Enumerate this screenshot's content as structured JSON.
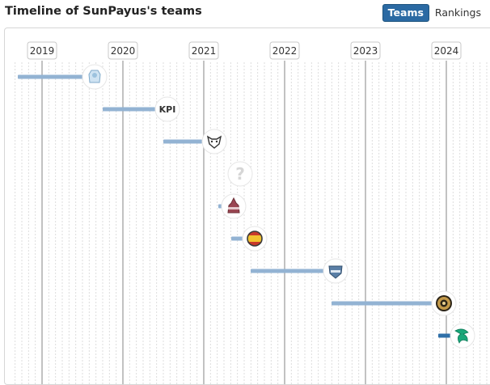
{
  "header": {
    "title": "Timeline of SunPayus's teams"
  },
  "switcher": {
    "teams_label": "Teams",
    "rankings_label": "Rankings",
    "active": "Teams"
  },
  "timeline": {
    "years": [
      "2019",
      "2020",
      "2021",
      "2022",
      "2023",
      "2024"
    ],
    "colors": {
      "bar": "#93b3d3",
      "current_bar": "#2f6fa8",
      "major_line": "#c2c2c2",
      "minor_line": "#dddddd"
    },
    "entries": [
      {
        "start": 2018.7,
        "end": 2019.5,
        "icon": "ice-bear-logo",
        "current": false
      },
      {
        "start": 2019.75,
        "end": 2020.4,
        "icon": "kpi-logo",
        "current": false
      },
      {
        "start": 2020.5,
        "end": 2020.98,
        "icon": "wolf-logo",
        "current": false
      },
      {
        "start": null,
        "end": 2021.3,
        "icon": "unknown-team-icon",
        "current": false
      },
      {
        "start": 2021.18,
        "end": 2021.22,
        "icon": "tower-logo",
        "current": false
      },
      {
        "start": 2021.34,
        "end": 2021.48,
        "icon": "spain-flag-logo",
        "current": false
      },
      {
        "start": 2021.58,
        "end": 2022.48,
        "icon": "shield-logo",
        "current": false
      },
      {
        "start": 2022.58,
        "end": 2023.82,
        "icon": "ence-logo",
        "current": false
      },
      {
        "start": 2023.9,
        "end": 2024.05,
        "icon": "falcon-logo",
        "current": true
      }
    ]
  }
}
